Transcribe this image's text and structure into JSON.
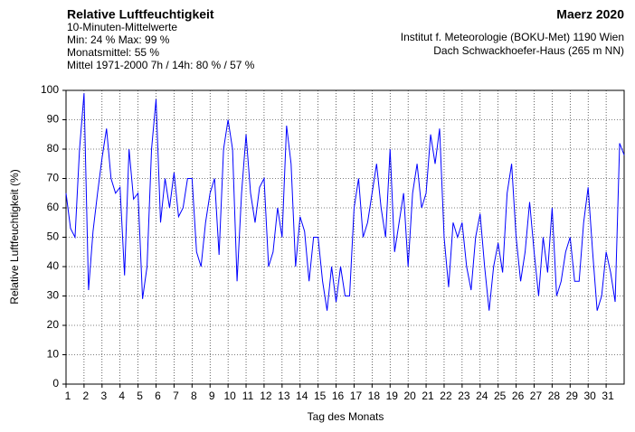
{
  "chart_data": {
    "type": "line",
    "title": "Relative Luftfeuchtigkeit",
    "subtitle": [
      "10-Minuten-Mittelwerte",
      "Min:  24 %   Max:  99 %",
      "Monatsmittel:  55 %",
      "Mittel 1971-2000 7h / 14h:  80 % / 57 %"
    ],
    "period": "Maerz 2020",
    "source": [
      "Institut f. Meteorologie (BOKU-Met) 1190 Wien",
      "Dach Schwackhoefer-Haus (265 m NN)"
    ],
    "xlabel": "Tag des Monats",
    "ylabel": "Relative Luftfeuchtigkeit (%)",
    "color": "#0000ff",
    "grid": true,
    "xlim": [
      1,
      32
    ],
    "xticks": [
      1,
      2,
      3,
      4,
      5,
      6,
      7,
      8,
      9,
      10,
      11,
      12,
      13,
      14,
      15,
      16,
      17,
      18,
      19,
      20,
      21,
      22,
      23,
      24,
      25,
      26,
      27,
      28,
      29,
      30,
      31
    ],
    "ylim": [
      0,
      100
    ],
    "yticks": [
      0,
      10,
      20,
      30,
      40,
      50,
      60,
      70,
      80,
      90,
      100
    ],
    "x": [
      1,
      1.25,
      1.5,
      1.75,
      2,
      2.25,
      2.5,
      2.75,
      3,
      3.25,
      3.5,
      3.75,
      4,
      4.25,
      4.5,
      4.75,
      5,
      5.25,
      5.5,
      5.75,
      6,
      6.25,
      6.5,
      6.75,
      7,
      7.25,
      7.5,
      7.75,
      8,
      8.25,
      8.5,
      8.75,
      9,
      9.25,
      9.5,
      9.75,
      10,
      10.25,
      10.5,
      10.75,
      11,
      11.25,
      11.5,
      11.75,
      12,
      12.25,
      12.5,
      12.75,
      13,
      13.25,
      13.5,
      13.75,
      14,
      14.25,
      14.5,
      14.75,
      15,
      15.25,
      15.5,
      15.75,
      16,
      16.25,
      16.5,
      16.75,
      17,
      17.25,
      17.5,
      17.75,
      18,
      18.25,
      18.5,
      18.75,
      19,
      19.25,
      19.5,
      19.75,
      20,
      20.25,
      20.5,
      20.75,
      21,
      21.25,
      21.5,
      21.75,
      22,
      22.25,
      22.5,
      22.75,
      23,
      23.25,
      23.5,
      23.75,
      24,
      24.25,
      24.5,
      24.75,
      25,
      25.25,
      25.5,
      25.75,
      26,
      26.25,
      26.5,
      26.75,
      27,
      27.25,
      27.5,
      27.75,
      28,
      28.25,
      28.5,
      28.75,
      29,
      29.25,
      29.5,
      29.75,
      30,
      30.25,
      30.5,
      30.75,
      31,
      31.25,
      31.5,
      31.75,
      32
    ],
    "values": [
      65,
      53,
      50,
      80,
      99,
      32,
      52,
      65,
      77,
      87,
      70,
      65,
      67,
      37,
      80,
      63,
      65,
      29,
      40,
      80,
      97,
      55,
      70,
      60,
      72,
      57,
      60,
      70,
      70,
      45,
      40,
      55,
      65,
      70,
      44,
      80,
      90,
      80,
      35,
      65,
      85,
      65,
      55,
      67,
      70,
      40,
      45,
      60,
      50,
      88,
      75,
      40,
      57,
      52,
      35,
      50,
      50,
      35,
      25,
      40,
      28,
      40,
      30,
      30,
      60,
      70,
      50,
      55,
      65,
      75,
      60,
      50,
      80,
      45,
      55,
      65,
      40,
      65,
      75,
      60,
      65,
      85,
      75,
      87,
      50,
      33,
      55,
      50,
      55,
      40,
      32,
      50,
      58,
      40,
      25,
      40,
      48,
      38,
      65,
      75,
      50,
      35,
      45,
      62,
      45,
      30,
      50,
      38,
      60,
      30,
      35,
      45,
      50,
      35,
      35,
      55,
      67,
      45,
      25,
      30,
      45,
      38,
      28,
      82,
      78
    ]
  }
}
